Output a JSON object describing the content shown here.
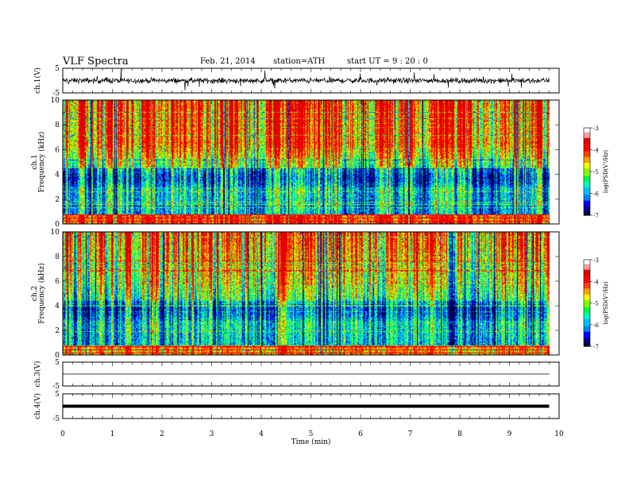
{
  "header": {
    "title": "VLF Spectra",
    "date": "Feb. 21, 2014",
    "station": "station=ATH",
    "start": "start UT =  9 : 20 : 0"
  },
  "colors": {
    "spectrogram_palette": [
      "#000040",
      "#000080",
      "#0000ff",
      "#0080ff",
      "#00c0ff",
      "#00ffc0",
      "#00ff40",
      "#80ff00",
      "#ffff00",
      "#ffa000",
      "#ff4000",
      "#ff0000",
      "#e00000",
      "#ffa0a0",
      "#ffffff"
    ]
  },
  "chart_data": [
    {
      "type": "line",
      "name": "ch1-waveform",
      "ylabel": "ch.1(V)",
      "ylim": [
        -5,
        5
      ],
      "yticks": [
        "5",
        "-5"
      ],
      "xlim": [
        0,
        10
      ],
      "grid": false,
      "note": "dense noisy voltage trace around 0 V"
    },
    {
      "type": "heatmap",
      "name": "ch1-spectrogram",
      "ylabel": "ch.1\nFrequency (kHz)",
      "ylim": [
        0,
        10
      ],
      "yticks": [
        "0",
        "2",
        "4",
        "6",
        "8",
        "10"
      ],
      "xlim": [
        0,
        10
      ],
      "data_end_min": 9.8,
      "colorbar": {
        "label": "log(PSD(V²/Hz)",
        "range": [
          -7,
          -3
        ],
        "ticks": [
          "-3",
          "-4",
          "-5",
          "-6",
          "-7"
        ]
      }
    },
    {
      "type": "heatmap",
      "name": "ch2-spectrogram",
      "ylabel": "ch.2\nFrequency (kHz)",
      "ylim": [
        0,
        10
      ],
      "yticks": [
        "0",
        "2",
        "4",
        "6",
        "8",
        "10"
      ],
      "xlim": [
        0,
        10
      ],
      "data_end_min": 9.8,
      "colorbar": {
        "label": "log(PSD(V²/Hz)",
        "range": [
          -7,
          -3
        ],
        "ticks": [
          "-3",
          "-4",
          "-5",
          "-6",
          "-7"
        ]
      }
    },
    {
      "type": "line",
      "name": "ch3-waveform",
      "ylabel": "ch.3(V)",
      "ylim": [
        -5,
        5
      ],
      "yticks": [
        "5",
        "-5"
      ],
      "xlim": [
        0,
        10
      ],
      "note": "flat trace near 0 V"
    },
    {
      "type": "line",
      "name": "ch4-waveform",
      "ylabel": "ch.4(V)",
      "ylim": [
        -5,
        5
      ],
      "yticks": [
        "5",
        "-5"
      ],
      "xlim": [
        0,
        10
      ],
      "note": "thick flat trace near 0 V"
    }
  ],
  "xaxis": {
    "label": "Time (min)",
    "ticks": [
      "0",
      "1",
      "2",
      "3",
      "4",
      "5",
      "6",
      "7",
      "8",
      "9",
      "10"
    ]
  }
}
